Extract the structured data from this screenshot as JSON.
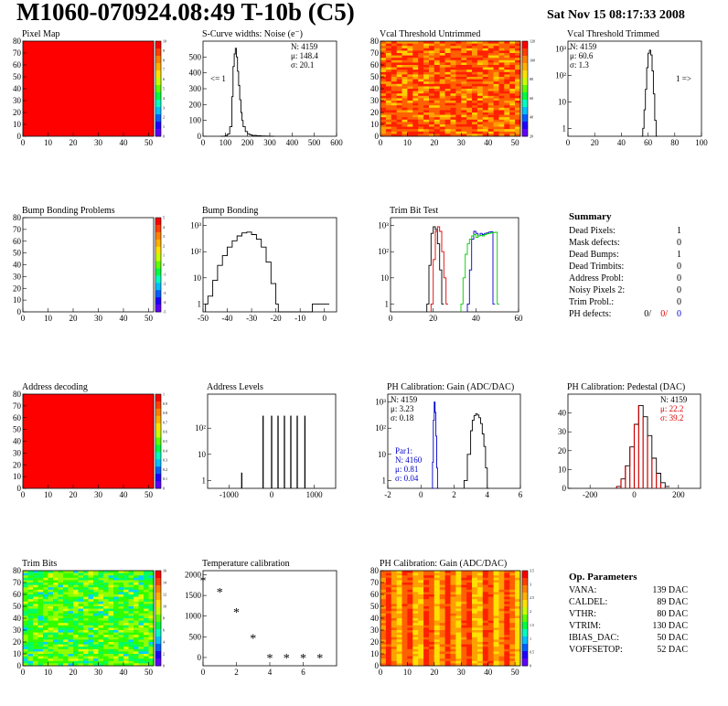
{
  "header": {
    "title": "M1060-070924.08:49 T-10b (C5)",
    "date": "Sat Nov 15 08:17:33 2008"
  },
  "colors": {
    "hist_black": "#000000",
    "hist_red": "#dd0000",
    "hist_blue": "#0000cc",
    "hist_green": "#00cc00",
    "fill_map": "#ff0000"
  },
  "chart_data": [
    {
      "id": "pixel-map",
      "type": "heatmap",
      "title": "Pixel Map",
      "xlim": [
        0,
        52
      ],
      "ylim": [
        0,
        80
      ],
      "xticks": [
        0,
        10,
        20,
        30,
        40,
        50
      ],
      "yticks": [
        0,
        10,
        20,
        30,
        40,
        50,
        60,
        70,
        80
      ],
      "fill": "uniform-max",
      "zscale": [
        "0",
        "1",
        "2",
        "3",
        "4",
        "5",
        "6",
        "7",
        "8",
        "9",
        "10"
      ]
    },
    {
      "id": "scurve-noise",
      "type": "line",
      "title": "S-Curve widths: Noise (e⁻)",
      "xlim": [
        0,
        600
      ],
      "ylim": [
        0,
        600
      ],
      "xticks": [
        0,
        100,
        200,
        300,
        400,
        500,
        600
      ],
      "yticks": [
        0,
        100,
        200,
        300,
        400,
        500
      ],
      "stats": [
        "N: 4159",
        "μ: 148.4",
        "σ: 20.1"
      ],
      "annotation": "<= 1",
      "series": [
        {
          "x": [
            80,
            100,
            110,
            120,
            130,
            135,
            140,
            145,
            150,
            155,
            160,
            165,
            170,
            175,
            180,
            190,
            200,
            210,
            220,
            240,
            260,
            280,
            300
          ],
          "values": [
            0,
            5,
            15,
            60,
            250,
            440,
            520,
            555,
            500,
            410,
            320,
            230,
            150,
            100,
            60,
            30,
            15,
            10,
            5,
            3,
            2,
            1,
            0
          ]
        }
      ]
    },
    {
      "id": "vcal-untrimmed",
      "type": "heatmap",
      "title": "Vcal Threshold Untrimmed",
      "xlim": [
        0,
        52
      ],
      "ylim": [
        0,
        80
      ],
      "xticks": [
        0,
        10,
        20,
        30,
        40,
        50
      ],
      "yticks": [
        0,
        10,
        20,
        30,
        40,
        50,
        60,
        70,
        80
      ],
      "fill": "noise-orange",
      "zscale": [
        "20",
        "40",
        "60",
        "80",
        "100",
        "120"
      ]
    },
    {
      "id": "vcal-trimmed",
      "type": "line",
      "title": "Vcal Threshold Trimmed",
      "xlim": [
        0,
        100
      ],
      "ylim": [
        0.5,
        2000
      ],
      "yscale": "log",
      "xticks": [
        0,
        20,
        40,
        60,
        80,
        100
      ],
      "yticks": [
        1,
        10,
        100,
        1000
      ],
      "ytick_labels": [
        "1",
        "10",
        "10²",
        "10³"
      ],
      "stats": [
        "N: 4159",
        "μ: 60.6",
        "σ: 1.3"
      ],
      "annotation": "1 =>",
      "series": [
        {
          "x": [
            55,
            56,
            57,
            58,
            59,
            60,
            61,
            62,
            63,
            64,
            65,
            66
          ],
          "values": [
            0.5,
            1,
            5,
            30,
            200,
            700,
            900,
            600,
            150,
            20,
            2,
            0.5
          ]
        }
      ]
    },
    {
      "id": "bump-bonding-problems",
      "type": "heatmap",
      "title": "Bump Bonding Problems",
      "xlim": [
        0,
        52
      ],
      "ylim": [
        0,
        80
      ],
      "xticks": [
        0,
        10,
        20,
        30,
        40,
        50
      ],
      "yticks": [
        0,
        10,
        20,
        30,
        40,
        50,
        60,
        70,
        80
      ],
      "fill": "empty",
      "zscale": [
        "-5",
        "-4",
        "-3",
        "-2",
        "-1",
        "0",
        "1",
        "2",
        "3",
        "4",
        "5"
      ]
    },
    {
      "id": "bump-bonding",
      "type": "line",
      "title": "Bump Bonding",
      "xlim": [
        -50,
        5
      ],
      "ylim": [
        0.5,
        2000
      ],
      "yscale": "log",
      "xticks": [
        -50,
        -40,
        -30,
        -20,
        -10,
        0
      ],
      "yticks": [
        1,
        10,
        100,
        1000
      ],
      "ytick_labels": [
        "1",
        "10",
        "10²",
        "10³"
      ],
      "series": [
        {
          "x": [
            -49,
            -48,
            -46,
            -44,
            -42,
            -40,
            -38,
            -36,
            -34,
            -32,
            -30,
            -28,
            -26,
            -24,
            -22,
            -20,
            -19,
            -5,
            -2,
            0
          ],
          "values": [
            1,
            2,
            8,
            30,
            70,
            150,
            260,
            400,
            520,
            560,
            450,
            300,
            150,
            40,
            6,
            1,
            0.5,
            1,
            1,
            1
          ]
        }
      ]
    },
    {
      "id": "trim-bit-test",
      "type": "line",
      "title": "Trim Bit Test",
      "xlim": [
        0,
        60
      ],
      "ylim": [
        0.5,
        2000
      ],
      "yscale": "log",
      "xticks": [
        0,
        20,
        40,
        60
      ],
      "yticks": [
        1,
        10,
        100,
        1000
      ],
      "ytick_labels": [
        "1",
        "10",
        "10²",
        "10³"
      ],
      "series": [
        {
          "color": "#000000",
          "x": [
            17,
            18,
            19,
            20,
            21,
            22,
            23,
            24
          ],
          "values": [
            1,
            30,
            500,
            900,
            700,
            200,
            20,
            1
          ]
        },
        {
          "color": "#dd0000",
          "x": [
            19,
            20,
            21,
            22,
            23,
            24,
            25,
            26
          ],
          "values": [
            1,
            50,
            600,
            900,
            600,
            100,
            10,
            1
          ]
        },
        {
          "color": "#0000cc",
          "x": [
            36,
            37,
            38,
            39,
            40,
            41,
            42,
            43,
            44,
            45,
            46,
            47,
            48
          ],
          "values": [
            1,
            20,
            300,
            600,
            500,
            400,
            500,
            450,
            500,
            520,
            560,
            580,
            1
          ]
        },
        {
          "color": "#00cc00",
          "x": [
            33,
            34,
            35,
            36,
            37,
            38,
            39,
            40,
            41,
            42,
            43,
            44,
            45,
            46,
            47,
            48,
            49,
            50
          ],
          "values": [
            1,
            10,
            80,
            200,
            300,
            400,
            450,
            350,
            400,
            420,
            400,
            450,
            480,
            500,
            520,
            540,
            550,
            1
          ]
        }
      ]
    },
    {
      "id": "address-decoding",
      "type": "heatmap",
      "title": "Address decoding",
      "xlim": [
        0,
        52
      ],
      "ylim": [
        0,
        80
      ],
      "xticks": [
        0,
        10,
        20,
        30,
        40,
        50
      ],
      "yticks": [
        0,
        10,
        20,
        30,
        40,
        50,
        60,
        70,
        80
      ],
      "fill": "uniform-max",
      "zscale": [
        "0",
        "0.1",
        "0.2",
        "0.3",
        "0.4",
        "0.5",
        "0.6",
        "0.7",
        "0.8",
        "0.9",
        "1"
      ]
    },
    {
      "id": "address-levels",
      "type": "line",
      "title": "Address Levels",
      "xlim": [
        -1500,
        1500
      ],
      "ylim": [
        0.5,
        2000
      ],
      "yscale": "log",
      "xticks": [
        -1000,
        0,
        1000
      ],
      "yticks": [
        1,
        10,
        100
      ],
      "ytick_labels": [
        "1",
        "10",
        "10²"
      ],
      "spikes": [
        {
          "x": -700,
          "h": 2
        },
        {
          "x": -200,
          "h": 300
        },
        {
          "x": 0,
          "h": 300
        },
        {
          "x": 150,
          "h": 300
        },
        {
          "x": 300,
          "h": 300
        },
        {
          "x": 450,
          "h": 300
        },
        {
          "x": 600,
          "h": 300
        },
        {
          "x": 780,
          "h": 300
        }
      ]
    },
    {
      "id": "ph-gain",
      "type": "line",
      "title": "PH Calibration: Gain (ADC/DAC)",
      "xlim": [
        -2,
        6
      ],
      "ylim": [
        0.5,
        2000
      ],
      "yscale": "log",
      "xticks": [
        -2,
        0,
        2,
        4,
        6
      ],
      "yticks": [
        1,
        10,
        100,
        1000
      ],
      "ytick_labels": [
        "1",
        "10",
        "10²",
        "10³"
      ],
      "stats": [
        "N: 4159",
        "μ: 3.23",
        "σ: 0.18"
      ],
      "stats2": [
        "Par1:",
        "N: 4160",
        "μ: 0.81",
        "σ: 0.04"
      ],
      "series": [
        {
          "color": "#0000cc",
          "x": [
            0.65,
            0.7,
            0.75,
            0.8,
            0.85,
            0.9,
            0.95,
            1.0
          ],
          "values": [
            0.5,
            5,
            200,
            1000,
            400,
            50,
            3,
            0.5
          ]
        },
        {
          "color": "#000000",
          "x": [
            2.6,
            2.8,
            3.0,
            3.1,
            3.2,
            3.3,
            3.4,
            3.5,
            3.6,
            3.7,
            3.8,
            3.9,
            4.0
          ],
          "values": [
            1,
            10,
            80,
            200,
            300,
            350,
            320,
            250,
            150,
            60,
            20,
            3,
            0.5
          ]
        }
      ]
    },
    {
      "id": "ph-pedestal",
      "type": "line",
      "title": "PH Calibration: Pedestal (DAC)",
      "xlim": [
        -300,
        300
      ],
      "ylim": [
        0,
        50
      ],
      "xticks": [
        -200,
        0,
        200
      ],
      "yticks": [
        0,
        10,
        20,
        30,
        40
      ],
      "stats": [
        "N: 4159",
        "μ: 22.2",
        "σ: 39.2"
      ],
      "series": [
        {
          "x": [
            -80,
            -60,
            -40,
            -20,
            0,
            20,
            40,
            60,
            80,
            100,
            120,
            140
          ],
          "values": [
            1,
            5,
            12,
            22,
            34,
            44,
            38,
            28,
            16,
            8,
            3,
            1
          ]
        }
      ]
    },
    {
      "id": "trim-bits",
      "type": "heatmap",
      "title": "Trim Bits",
      "xlim": [
        0,
        52
      ],
      "ylim": [
        0,
        80
      ],
      "xticks": [
        0,
        10,
        20,
        30,
        40,
        50
      ],
      "yticks": [
        0,
        10,
        20,
        30,
        40,
        50,
        60,
        70,
        80
      ],
      "fill": "noise-green",
      "zscale": [
        "0",
        "2",
        "4",
        "6",
        "8",
        "10",
        "12",
        "14",
        "16"
      ]
    },
    {
      "id": "temperature-calibration",
      "type": "scatter",
      "title": "Temperature calibration",
      "xlim": [
        0,
        8
      ],
      "ylim": [
        -200,
        2100
      ],
      "xticks": [
        0,
        2,
        4,
        6
      ],
      "yticks": [
        0,
        500,
        1000,
        1500,
        2000
      ],
      "x": [
        0,
        1,
        2,
        3,
        4,
        5,
        6,
        7
      ],
      "values": [
        1870,
        1590,
        1100,
        480,
        0,
        0,
        0,
        0
      ]
    },
    {
      "id": "ph-gain-map",
      "type": "heatmap",
      "title": "PH Calibration: Gain (ADC/DAC)",
      "xlim": [
        0,
        52
      ],
      "ylim": [
        0,
        80
      ],
      "xticks": [
        0,
        10,
        20,
        30,
        40,
        50
      ],
      "yticks": [
        0,
        10,
        20,
        30,
        40,
        50,
        60,
        70,
        80
      ],
      "fill": "column-stripes",
      "zscale": [
        "0",
        "0.5",
        "1",
        "1.5",
        "2",
        "2.5",
        "3",
        "3.5"
      ]
    }
  ],
  "summary": {
    "heading": "Summary",
    "rows": [
      {
        "label": "Dead Pixels:",
        "value": "1"
      },
      {
        "label": "Mask defects:",
        "value": "0"
      },
      {
        "label": "Dead Bumps:",
        "value": "1"
      },
      {
        "label": "Dead Trimbits:",
        "value": "0"
      },
      {
        "label": "Address Probl:",
        "value": "0"
      },
      {
        "label": "Noisy Pixels 2:",
        "value": "0"
      },
      {
        "label": "Trim Probl.:",
        "value": "0"
      }
    ],
    "ph_defects": {
      "label": "PH defects:",
      "v1": "0/",
      "v2": "0/",
      "v3": "0"
    }
  },
  "op_params": {
    "heading": "Op. Parameters",
    "rows": [
      {
        "label": "VANA:",
        "value": "139 DAC"
      },
      {
        "label": "CALDEL:",
        "value": "89 DAC"
      },
      {
        "label": "VTHR:",
        "value": "80 DAC"
      },
      {
        "label": "VTRIM:",
        "value": "130 DAC"
      },
      {
        "label": "IBIAS_DAC:",
        "value": "50 DAC"
      },
      {
        "label": "VOFFSETOP:",
        "value": "52 DAC"
      }
    ]
  }
}
